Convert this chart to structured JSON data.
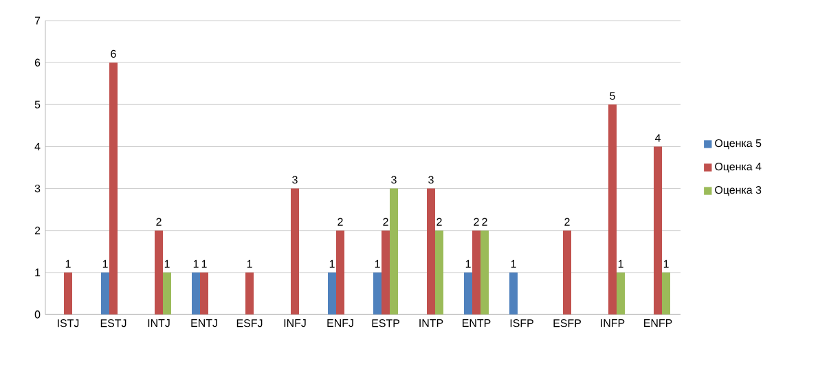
{
  "chart_data": {
    "type": "bar",
    "categories": [
      "ISTJ",
      "ESTJ",
      "INTJ",
      "ENTJ",
      "ESFJ",
      "INFJ",
      "ENFJ",
      "ESTP",
      "INTP",
      "ENTP",
      "ISFP",
      "ESFP",
      "INFP",
      "ENFP"
    ],
    "series": [
      {
        "name": "Оценка 5",
        "color": "#4f81bd",
        "values": [
          null,
          1,
          null,
          1,
          null,
          null,
          1,
          1,
          null,
          1,
          1,
          null,
          null,
          null
        ]
      },
      {
        "name": "Оценка 4",
        "color": "#c0504d",
        "values": [
          1,
          6,
          2,
          1,
          1,
          3,
          2,
          2,
          3,
          2,
          null,
          2,
          5,
          4
        ]
      },
      {
        "name": "Оценка 3",
        "color": "#9bbb59",
        "values": [
          null,
          null,
          1,
          null,
          null,
          null,
          null,
          3,
          2,
          2,
          null,
          null,
          1,
          1
        ]
      }
    ],
    "ylim": [
      0,
      7
    ],
    "yticks": [
      0,
      1,
      2,
      3,
      4,
      5,
      6,
      7
    ],
    "grid": "y",
    "legend": "right",
    "data_labels": true
  }
}
